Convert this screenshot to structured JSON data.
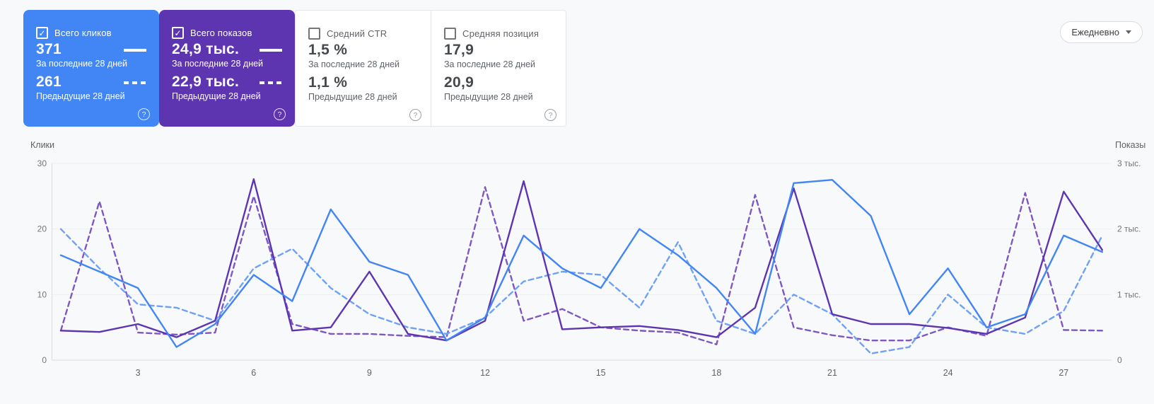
{
  "cards": [
    {
      "label": "Всего кликов",
      "checked": true,
      "accent": "#4285f4",
      "current": "371",
      "current_caption": "За последние 28 дней",
      "previous": "261",
      "previous_caption": "Предыдущие 28 дней",
      "help": "?"
    },
    {
      "label": "Всего показов",
      "checked": true,
      "accent": "#5e35b1",
      "current": "24,9 тыс.",
      "current_caption": "За последние 28 дней",
      "previous": "22,9 тыс.",
      "previous_caption": "Предыдущие 28 дней",
      "help": "?"
    },
    {
      "label": "Средний CTR",
      "checked": false,
      "accent": "#ffffff",
      "current": "1,5 %",
      "current_caption": "За последние 28 дней",
      "previous": "1,1 %",
      "previous_caption": "Предыдущие 28 дней",
      "help": "?"
    },
    {
      "label": "Средняя позиция",
      "checked": false,
      "accent": "#ffffff",
      "current": "17,9",
      "current_caption": "За последние 28 дней",
      "previous": "20,9",
      "previous_caption": "Предыдущие 28 дней",
      "help": "?"
    }
  ],
  "granularity": {
    "label": "Ежедневно"
  },
  "chart_data": {
    "type": "line",
    "n_points": 28,
    "x_ticks": [
      3,
      6,
      9,
      12,
      15,
      18,
      21,
      24,
      27
    ],
    "left_axis": {
      "title": "Клики",
      "tick_labels": [
        "0",
        "10",
        "20",
        "30"
      ],
      "ticks": [
        0,
        10,
        20,
        30
      ],
      "max": 30
    },
    "right_axis": {
      "title": "Показы",
      "tick_labels": [
        "0",
        "1 тыс.",
        "2 тыс.",
        "3 тыс."
      ],
      "ticks": [
        0,
        1000,
        2000,
        3000
      ],
      "max": 3000
    },
    "grid": true,
    "legend_position": "none",
    "series": [
      {
        "name": "Всего показов — предыдущие 28 дней",
        "axis": "right",
        "style": "dashed",
        "color": "#7e57c2",
        "values": [
          450,
          2420,
          420,
          390,
          420,
          2500,
          550,
          400,
          400,
          370,
          350,
          2640,
          600,
          780,
          500,
          450,
          420,
          240,
          2520,
          500,
          380,
          300,
          300,
          500,
          370,
          2550,
          460,
          450
        ]
      },
      {
        "name": "Всего кликов — предыдущие 28 дней",
        "axis": "left",
        "style": "dashed",
        "color": "#6ea1f7",
        "values": [
          20,
          14,
          8.5,
          8,
          6,
          14,
          17,
          11,
          7,
          5,
          4,
          6.5,
          12,
          13.5,
          13,
          8,
          18,
          6,
          4,
          10,
          7,
          1,
          2,
          10,
          5,
          4,
          7.5,
          19
        ]
      },
      {
        "name": "Всего показов — за последние 28 дней",
        "axis": "right",
        "style": "solid",
        "color": "#5e35b1",
        "values": [
          450,
          430,
          550,
          350,
          600,
          2760,
          450,
          500,
          1350,
          400,
          300,
          600,
          2730,
          470,
          500,
          520,
          460,
          350,
          800,
          2620,
          700,
          550,
          550,
          490,
          400,
          650,
          2570,
          1680
        ]
      },
      {
        "name": "Всего кликов — за последние 28 дней",
        "axis": "left",
        "style": "solid",
        "color": "#4285f4",
        "values": [
          16,
          13.5,
          11,
          2,
          5.5,
          13,
          9,
          23,
          15,
          13,
          3,
          6.5,
          19,
          14,
          11,
          20,
          16,
          11,
          4,
          27,
          27.5,
          22,
          7,
          14,
          5,
          7,
          19,
          16.5
        ]
      }
    ]
  }
}
